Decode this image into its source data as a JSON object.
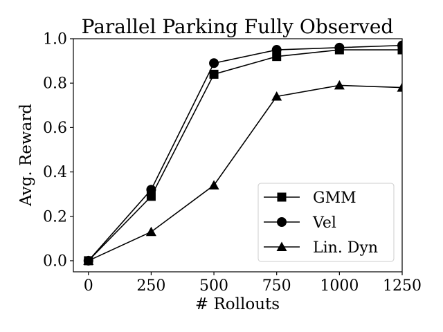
{
  "chart_data": {
    "type": "line",
    "title": "Parallel Parking Fully Observed",
    "xlabel": "# Rollouts",
    "ylabel": "Avg. Reward",
    "x": [
      0,
      250,
      500,
      750,
      1000,
      1250
    ],
    "xlim": [
      -60,
      1250
    ],
    "ylim": [
      -0.05,
      1.0
    ],
    "xticks": [
      "0",
      "250",
      "500",
      "750",
      "1000",
      "1250"
    ],
    "yticks": [
      "0.0",
      "0.2",
      "0.4",
      "0.6",
      "0.8",
      "1.0"
    ],
    "grid": false,
    "legend_position": "lower-right",
    "series": [
      {
        "name": "GMM",
        "marker": "square",
        "values": [
          0.0,
          0.29,
          0.84,
          0.92,
          0.95,
          0.95
        ]
      },
      {
        "name": "Vel",
        "marker": "circle",
        "values": [
          0.0,
          0.32,
          0.89,
          0.95,
          0.96,
          0.97
        ]
      },
      {
        "name": "Lin. Dyn",
        "marker": "triangle",
        "values": [
          0.0,
          0.13,
          0.34,
          0.74,
          0.79,
          0.78
        ]
      }
    ],
    "colors": {
      "line": "#000000",
      "marker": "#000000",
      "background": "#ffffff"
    }
  }
}
